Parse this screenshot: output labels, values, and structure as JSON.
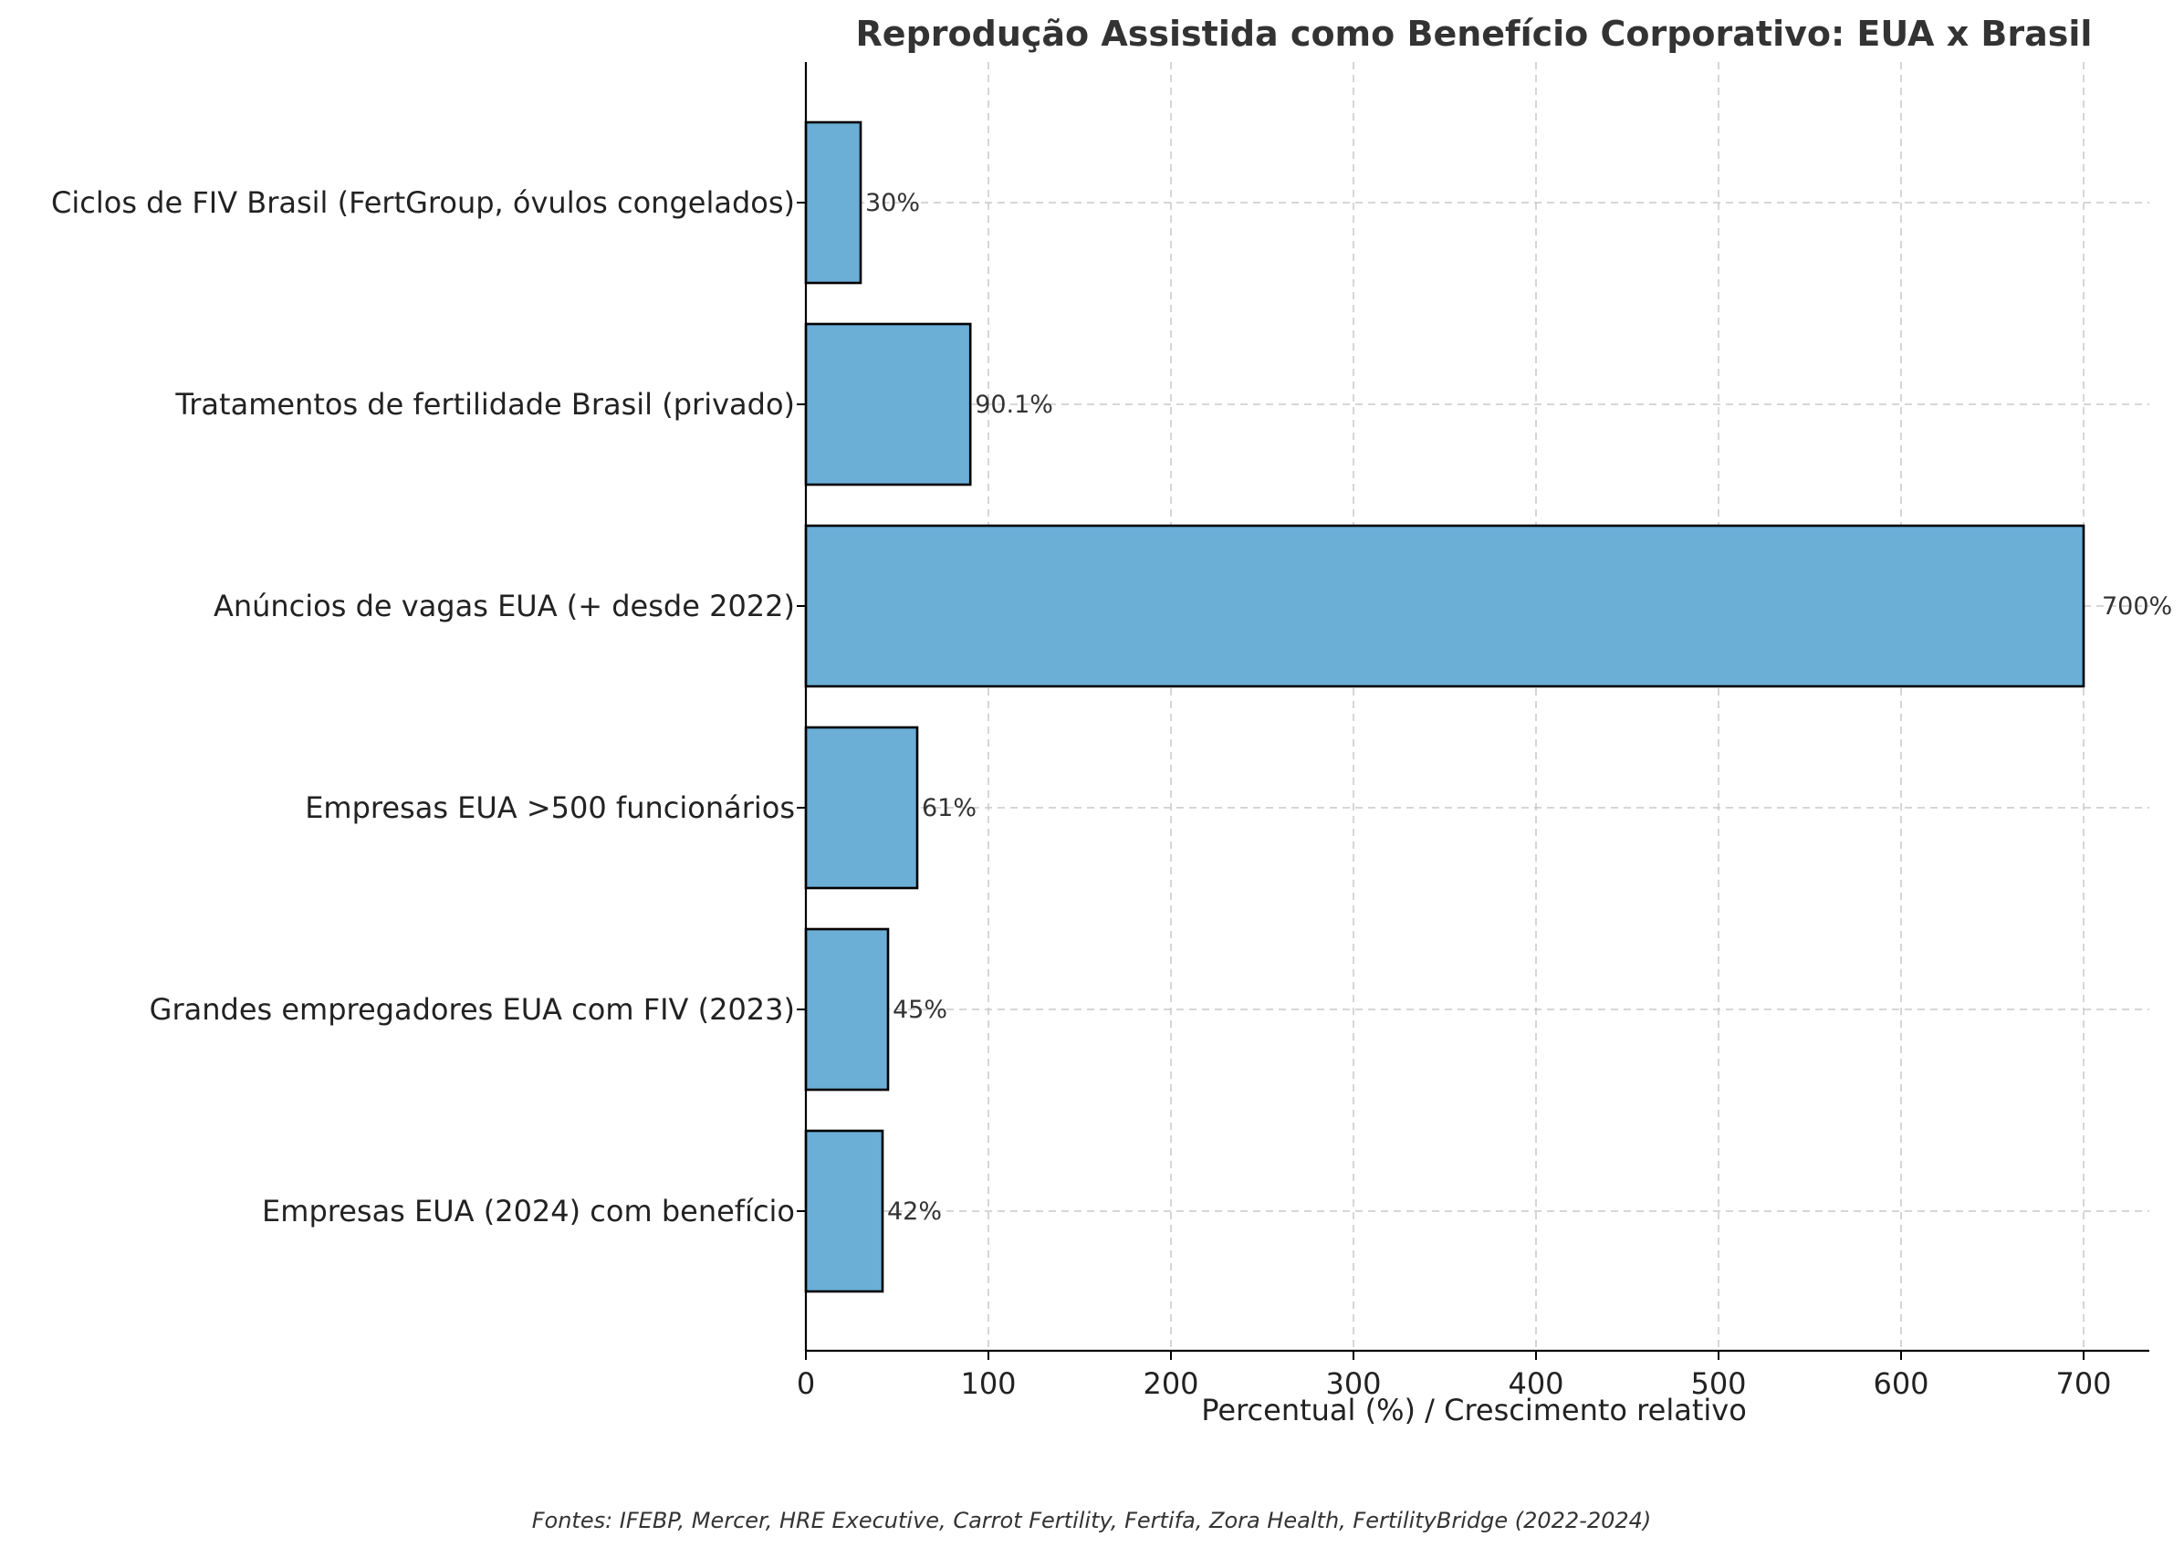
{
  "chart_data": {
    "type": "bar",
    "orientation": "horizontal",
    "title": "Reprodução Assistida como Benefício Corporativo: EUA x Brasil",
    "xlabel": "Percentual (%) / Crescimento relativo",
    "ylabel": "",
    "xlim": [
      0,
      735
    ],
    "xticks": [
      0,
      100,
      200,
      300,
      400,
      500,
      600,
      700
    ],
    "xtick_labels": [
      "0",
      "100",
      "200",
      "300",
      "400",
      "500",
      "600",
      "700"
    ],
    "grid": true,
    "bar_color": "#6baed6",
    "bar_edge_color": "#000000",
    "categories": [
      "Ciclos de FIV Brasil (FertGroup, óvulos congelados)",
      "Tratamentos de fertilidade Brasil (privado)",
      "Anúncios de vagas EUA (+ desde 2022)",
      "Empresas EUA >500 funcionários",
      "Grandes empregadores EUA com FIV (2023)",
      "Empresas EUA (2024) com benefício"
    ],
    "values": [
      30,
      90.1,
      700,
      61,
      45,
      42
    ],
    "data_labels": [
      "30%",
      "90.1%",
      "700%",
      "61%",
      "45%",
      "42%"
    ],
    "source": "Fontes: IFEBP, Mercer, HRE Executive, Carrot Fertility, Fertifa, Zora Health, FertilityBridge (2022-2024)"
  }
}
